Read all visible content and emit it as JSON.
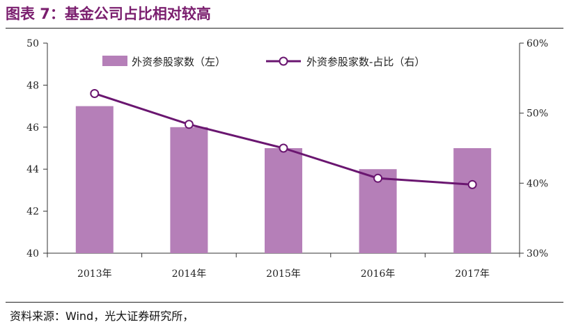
{
  "figure": {
    "title": "图表 7：基金公司占比相对较高",
    "source": "资料来源：Wind，光大证券研究所，"
  },
  "chart_data": {
    "type": "bar",
    "categories": [
      "2013年",
      "2014年",
      "2015年",
      "2016年",
      "2017年"
    ],
    "series": [
      {
        "name": "外资参股家数（左）",
        "type": "bar",
        "axis": "left",
        "values": [
          47,
          46,
          45,
          44,
          45
        ]
      },
      {
        "name": "外资参股家数-占比（右）",
        "type": "line",
        "axis": "right",
        "values": [
          52.8,
          48.4,
          45.0,
          40.7,
          39.8
        ]
      }
    ],
    "left_axis": {
      "ylim": [
        40,
        50
      ],
      "ticks": [
        "40",
        "42",
        "44",
        "46",
        "48",
        "50"
      ]
    },
    "right_axis": {
      "ylim": [
        30,
        60
      ],
      "ticks": [
        "30%",
        "40%",
        "50%",
        "60%"
      ]
    },
    "legend_position": "top",
    "grid": false,
    "colors": {
      "bar": "#b57fb8",
      "line": "#6a1670",
      "title": "#7a1e6e"
    }
  }
}
